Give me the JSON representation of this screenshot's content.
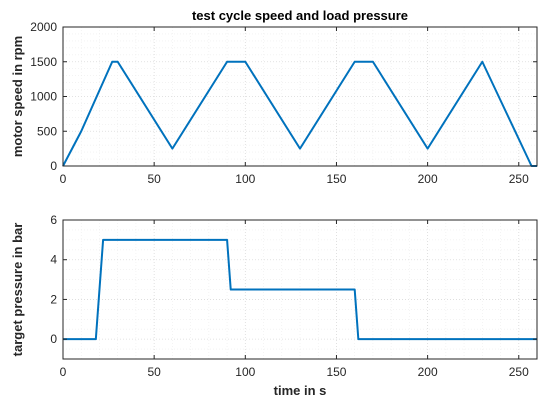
{
  "colors": {
    "series": "#0072BD"
  },
  "chart_data": [
    {
      "type": "line",
      "title": "test cycle speed and load pressure",
      "xlabel": "",
      "ylabel": "motor speed in rpm",
      "xlim": [
        0,
        260
      ],
      "ylim": [
        0,
        2000
      ],
      "xticks": [
        0,
        50,
        100,
        150,
        200,
        250
      ],
      "xtick_labels": [
        "0",
        "50",
        "100",
        "150",
        "200",
        "250"
      ],
      "yticks": [
        0,
        500,
        1000,
        1500,
        2000
      ],
      "ytick_labels": [
        "0",
        "500",
        "1000",
        "1500",
        "2000"
      ],
      "grid": true,
      "minor_grid": true,
      "series": [
        {
          "x": [
            0,
            10,
            27,
            30,
            60,
            90,
            100,
            130,
            160,
            170,
            200,
            230,
            257,
            260
          ],
          "y": [
            0,
            500,
            1500,
            1500,
            250,
            1500,
            1500,
            250,
            1500,
            1500,
            250,
            1500,
            0,
            0
          ]
        }
      ]
    },
    {
      "type": "line",
      "title": "",
      "xlabel": "time in s",
      "ylabel": "target pressure in bar",
      "xlim": [
        0,
        260
      ],
      "ylim": [
        -1,
        6
      ],
      "xticks": [
        0,
        50,
        100,
        150,
        200,
        250
      ],
      "xtick_labels": [
        "0",
        "50",
        "100",
        "150",
        "200",
        "250"
      ],
      "yticks": [
        0,
        2,
        4,
        6
      ],
      "ytick_labels": [
        "0",
        "2",
        "4",
        "6"
      ],
      "grid": true,
      "minor_grid": true,
      "series": [
        {
          "x": [
            0,
            18,
            22,
            90,
            92,
            160,
            162,
            260
          ],
          "y": [
            0,
            0,
            5,
            5,
            2.5,
            2.5,
            0,
            0
          ]
        }
      ]
    }
  ]
}
